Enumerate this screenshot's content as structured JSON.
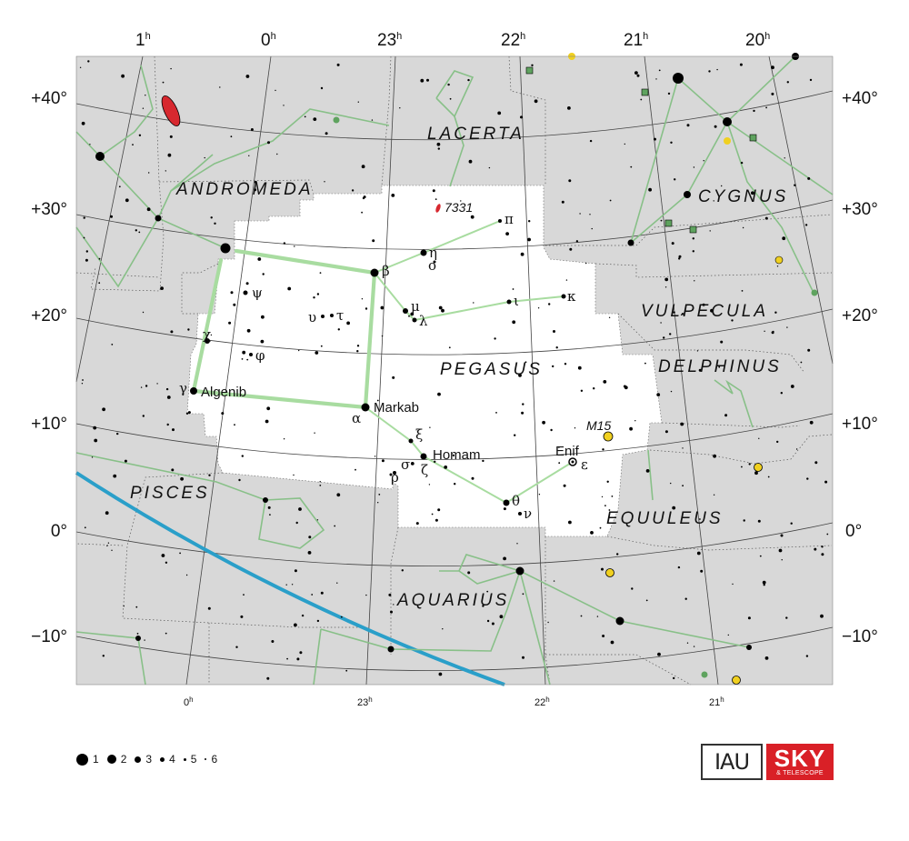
{
  "ra_labels_top": [
    {
      "h": "1",
      "u": "h"
    },
    {
      "h": "0",
      "u": "h"
    },
    {
      "h": "23",
      "u": "h"
    },
    {
      "h": "22",
      "u": "h"
    },
    {
      "h": "21",
      "u": "h"
    },
    {
      "h": "20",
      "u": "h"
    }
  ],
  "ra_labels_bottom": [
    {
      "h": "0",
      "u": "h"
    },
    {
      "h": "23",
      "u": "h"
    },
    {
      "h": "22",
      "u": "h"
    },
    {
      "h": "21",
      "u": "h"
    }
  ],
  "dec_labels": [
    "+40°",
    "+30°",
    "+20°",
    "+10°",
    "0°",
    "−10°"
  ],
  "constellations": [
    {
      "id": "lacerta",
      "label": "LACERTA"
    },
    {
      "id": "andromeda",
      "label": "ANDROMEDA"
    },
    {
      "id": "cygnus",
      "label": "CYGNUS"
    },
    {
      "id": "vulpecula",
      "label": "VULPECULA"
    },
    {
      "id": "pegasus",
      "label": "PEGASUS"
    },
    {
      "id": "delphinus",
      "label": "DELPHINUS"
    },
    {
      "id": "pisces",
      "label": "PISCES"
    },
    {
      "id": "equuleus",
      "label": "EQUULEUS"
    },
    {
      "id": "aquarius",
      "label": "AQUARIUS"
    }
  ],
  "star_names": {
    "algenib": "Algenib",
    "markab": "Markab",
    "homam": "Homam",
    "enif": "Enif"
  },
  "greek_labels": {
    "beta": "β",
    "eta": "η",
    "omicron": "ο",
    "pi": "π",
    "mu": "μ",
    "lambda": "λ",
    "iota": "ι",
    "kappa": "κ",
    "psi": "ψ",
    "upsilon": "υ",
    "tau": "τ",
    "chi": "χ",
    "phi": "φ",
    "gamma": "γ",
    "alpha": "α",
    "xi": "ξ",
    "zeta": "ζ",
    "sigma": "σ",
    "rho": "ρ",
    "theta": "θ",
    "nu": "ν",
    "epsilon": "ε"
  },
  "deep_sky": {
    "ngc7331": "7331",
    "m15": "M15"
  },
  "legend": {
    "title": "",
    "items": [
      "1",
      "2",
      "3",
      "4",
      "5",
      "6"
    ]
  },
  "logos": {
    "iau": "IAU",
    "sky_big": "SKY",
    "sky_small": "& TELESCOPE"
  },
  "colors": {
    "background_region": "#d8d8d8",
    "highlight_region": "#ffffff",
    "stick_lines": "#88c088",
    "highlight_lines": "#a8dca0",
    "ecliptic": "#2a9fc9",
    "grid": "#555555",
    "galaxy": "#d7282f",
    "cluster": "#f0d020",
    "nebula": "#5fa35f"
  }
}
